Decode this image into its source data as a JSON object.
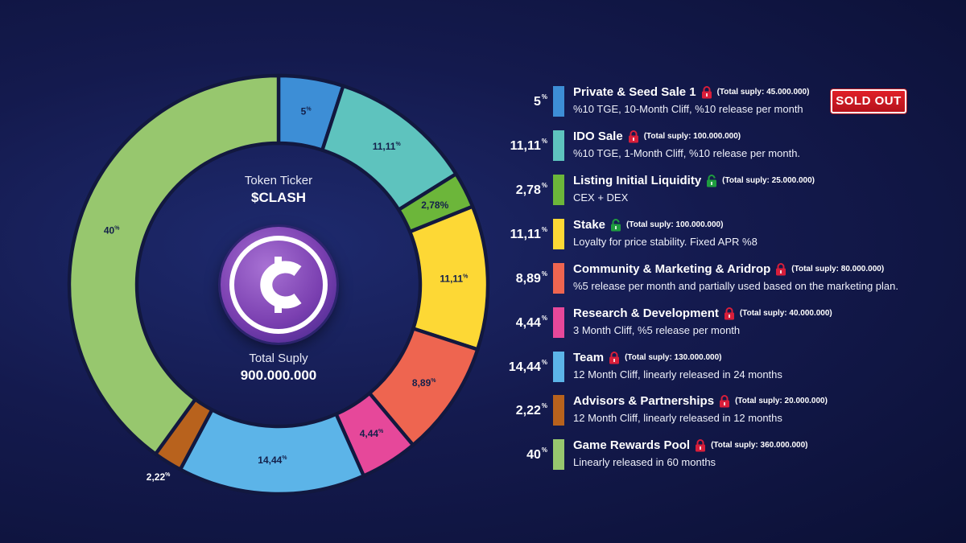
{
  "center": {
    "ticker_label": "Token Ticker",
    "ticker_value": "$CLASH",
    "supply_label": "Total Suply",
    "supply_value": "900.000.000"
  },
  "chart_data": {
    "type": "pie",
    "variant": "donut",
    "categories": [
      "Private & Seed Sale 1",
      "IDO Sale",
      "Listing Initial Liquidity",
      "Stake",
      "Community & Marketing & Aridrop",
      "Research & Development",
      "Team",
      "Advisors & Partnerships",
      "Game Rewards Pool"
    ],
    "values": [
      5,
      11.11,
      2.78,
      11.11,
      8.89,
      4.44,
      14.44,
      2.22,
      40
    ],
    "slice_labels": [
      "5",
      "11,11",
      "2,78%",
      "11,11",
      "8,89",
      "4,44",
      "14,44",
      "2,22",
      "40"
    ],
    "colors": [
      "#3d8ed6",
      "#5ec3be",
      "#6cb63a",
      "#fdd835",
      "#ee6550",
      "#e6489a",
      "#5cb4e8",
      "#b8621d",
      "#97c76e"
    ]
  },
  "legend": {
    "percent_suffix": "%",
    "sold_out_badge": "SOLD OUT",
    "items": [
      {
        "percent": "5",
        "title": "Private & Seed Sale 1",
        "lock": "locked",
        "supply": "(Total suply: 45.000.000)",
        "desc": "%10 TGE, 10-Month Cliff, %10 release per month",
        "color": "#3d8ed6"
      },
      {
        "percent": "11,11",
        "title": "IDO Sale",
        "lock": "locked",
        "supply": "(Total suply: 100.000.000)",
        "desc": "%10 TGE, 1-Month Cliff, %10 release per month.",
        "color": "#5ec3be"
      },
      {
        "percent": "2,78",
        "title": "Listing Initial Liquidity",
        "lock": "unlocked",
        "supply": "(Total suply: 25.000.000)",
        "desc": "CEX + DEX",
        "color": "#6cb63a"
      },
      {
        "percent": "11,11",
        "title": "Stake",
        "lock": "unlocked",
        "supply": "(Total suply: 100.000.000)",
        "desc": "Loyalty for price stability. Fixed APR %8",
        "color": "#fdd835"
      },
      {
        "percent": "8,89",
        "title": "Community & Marketing & Aridrop",
        "lock": "locked",
        "supply": "(Total suply: 80.000.000)",
        "desc": "%5 release per month and partially used based on the marketing plan.",
        "color": "#ee6550"
      },
      {
        "percent": "4,44",
        "title": "Research & Development",
        "lock": "locked",
        "supply": "(Total suply: 40.000.000)",
        "desc": "3 Month Cliff, %5 release per month",
        "color": "#e6489a"
      },
      {
        "percent": "14,44",
        "title": "Team",
        "lock": "locked",
        "supply": "(Total suply: 130.000.000)",
        "desc": "12 Month Cliff, linearly released in 24 months",
        "color": "#5cb4e8"
      },
      {
        "percent": "2,22",
        "title": "Advisors & Partnerships",
        "lock": "locked",
        "supply": "(Total suply: 20.000.000)",
        "desc": "12 Month Cliff, linearly released in 12 months",
        "color": "#b8621d"
      },
      {
        "percent": "40",
        "title": "Game Rewards Pool",
        "lock": "locked",
        "supply": "(Total suply: 360.000.000)",
        "desc": "Linearly released in 60 months",
        "color": "#97c76e"
      }
    ]
  },
  "colors": {
    "lock_locked": "#d81e3a",
    "lock_unlocked": "#1f9d3f",
    "badge": "#d3181f"
  }
}
